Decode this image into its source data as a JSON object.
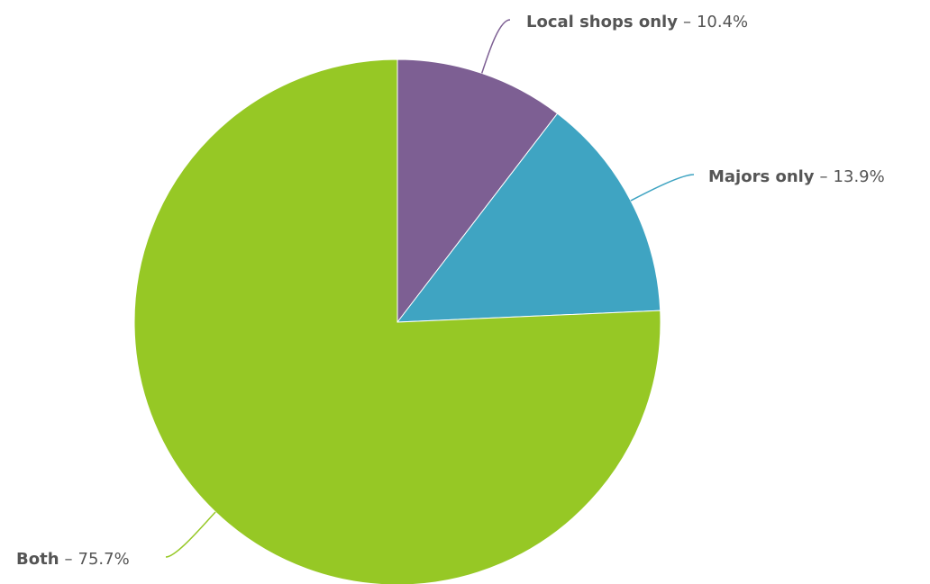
{
  "chart_data": {
    "type": "pie",
    "title": "",
    "slices": [
      {
        "label": "Local shops only",
        "value": 10.4,
        "value_text": "10.4%",
        "color": "#7d5f93"
      },
      {
        "label": "Majors only",
        "value": 13.9,
        "value_text": "13.9%",
        "color": "#3fa4c2"
      },
      {
        "label": "Both",
        "value": 75.7,
        "value_text": "75.7%",
        "color": "#96c825"
      }
    ],
    "legend": "none",
    "data_labels": "outside-with-leader-lines",
    "separator": "–"
  }
}
